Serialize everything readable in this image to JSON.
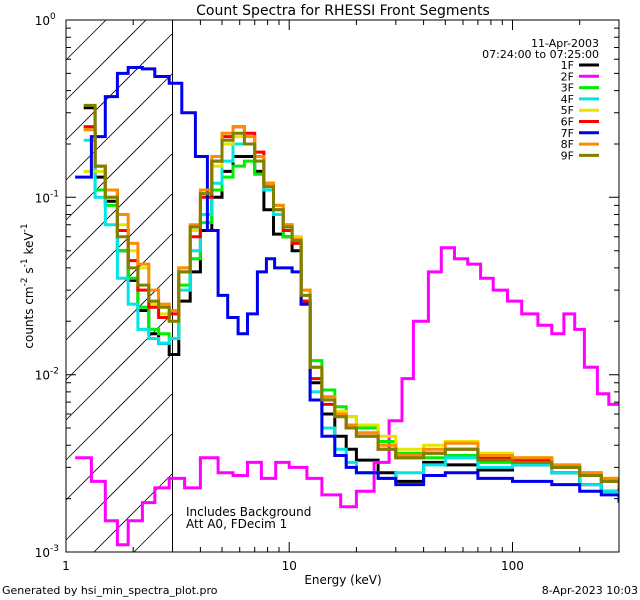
{
  "footer": {
    "left": "Generated by hsi_min_spectra_plot.pro",
    "right": "8-Apr-2023 10:03"
  },
  "chart_data": {
    "type": "line",
    "title": "Count Spectra for RHESSI Front Segments",
    "xlabel": "Energy (keV)",
    "ylabel_parts": [
      "counts cm",
      "-2",
      " s",
      "-1",
      " keV",
      "-1"
    ],
    "x_scale": "log",
    "y_scale": "log",
    "xlim": [
      1,
      300
    ],
    "ylim": [
      0.001,
      1
    ],
    "x_ticks": [
      {
        "v": 1,
        "label": "1"
      },
      {
        "v": 10,
        "label": "10"
      },
      {
        "v": 100,
        "label": "100"
      }
    ],
    "y_ticks": [
      {
        "v": 0.001,
        "base": "10",
        "exp": "-3"
      },
      {
        "v": 0.01,
        "base": "10",
        "exp": "-2"
      },
      {
        "v": 0.1,
        "base": "10",
        "exp": "-1"
      },
      {
        "v": 1,
        "base": "10",
        "exp": "0"
      }
    ],
    "date": "11-Apr-2003",
    "time_range": "07:24:00 to 07:25:00",
    "annotations": [
      "Includes Background",
      "Att A0, FDecim 1"
    ],
    "hatched_region_max_keV": 3,
    "legend_position": "top-right",
    "series": [
      {
        "name": "1F",
        "color": "#000000",
        "x": [
          1.2,
          1.35,
          1.5,
          1.7,
          1.9,
          2.1,
          2.35,
          2.6,
          2.9,
          3.2,
          3.6,
          4,
          4.5,
          5,
          5.6,
          6.3,
          7,
          7.7,
          8.5,
          9.4,
          10.3,
          11.3,
          12.4,
          14,
          16,
          18,
          20,
          25,
          30,
          40,
          50,
          70,
          100,
          150,
          200,
          250,
          300
        ],
        "y": [
          0.32,
          0.13,
          0.095,
          0.05,
          0.034,
          0.023,
          0.017,
          0.015,
          0.013,
          0.026,
          0.038,
          0.065,
          0.1,
          0.14,
          0.17,
          0.17,
          0.14,
          0.085,
          0.062,
          0.06,
          0.05,
          0.025,
          0.009,
          0.006,
          0.0045,
          0.0038,
          0.0033,
          0.0028,
          0.0025,
          0.0032,
          0.0031,
          0.0029,
          0.0031,
          0.0028,
          0.0024,
          0.0022,
          0.002
        ]
      },
      {
        "name": "2F",
        "color": "#ff00ff",
        "x": [
          1.1,
          1.3,
          1.5,
          1.7,
          1.9,
          2.2,
          2.5,
          2.9,
          3.4,
          4,
          4.8,
          5.6,
          6.5,
          7.5,
          8.7,
          10,
          12,
          14,
          17,
          20,
          24,
          28,
          32,
          36,
          42,
          48,
          55,
          63,
          72,
          82,
          95,
          110,
          130,
          150,
          170,
          190,
          210,
          240,
          270,
          300
        ],
        "y": [
          0.0034,
          0.0025,
          0.0015,
          0.0011,
          0.0015,
          0.0019,
          0.0023,
          0.0026,
          0.0023,
          0.0034,
          0.0028,
          0.0027,
          0.0032,
          0.0026,
          0.0032,
          0.003,
          0.0026,
          0.0021,
          0.0018,
          0.0022,
          0.0032,
          0.0055,
          0.0095,
          0.02,
          0.038,
          0.052,
          0.045,
          0.042,
          0.035,
          0.03,
          0.026,
          0.022,
          0.019,
          0.017,
          0.022,
          0.018,
          0.011,
          0.0078,
          0.0068,
          0.007
        ]
      },
      {
        "name": "3F",
        "color": "#00ee00",
        "x": [
          1.2,
          1.35,
          1.5,
          1.7,
          1.9,
          2.1,
          2.35,
          2.6,
          2.9,
          3.2,
          3.6,
          4,
          4.5,
          5,
          5.6,
          6.3,
          7,
          7.7,
          8.5,
          9.4,
          10.3,
          11.3,
          12.4,
          14,
          16,
          18,
          20,
          25,
          30,
          40,
          50,
          70,
          100,
          150,
          200,
          250,
          300
        ],
        "y": [
          0.25,
          0.11,
          0.09,
          0.05,
          0.035,
          0.024,
          0.018,
          0.017,
          0.016,
          0.032,
          0.045,
          0.072,
          0.11,
          0.13,
          0.15,
          0.16,
          0.135,
          0.11,
          0.09,
          0.06,
          0.058,
          0.028,
          0.012,
          0.0082,
          0.0066,
          0.0058,
          0.005,
          0.0042,
          0.0036,
          0.0034,
          0.0035,
          0.0032,
          0.0033,
          0.003,
          0.0028,
          0.0025,
          0.0022
        ]
      },
      {
        "name": "4F",
        "color": "#00e5e5",
        "x": [
          1.2,
          1.35,
          1.5,
          1.7,
          1.9,
          2.1,
          2.35,
          2.6,
          2.9,
          3.2,
          3.6,
          4,
          4.5,
          5,
          5.6,
          6.3,
          7,
          7.7,
          8.5,
          9.4,
          10.3,
          11.3,
          12.4,
          14,
          16,
          18,
          20,
          25,
          30,
          40,
          50,
          70,
          100,
          150,
          200,
          250,
          300
        ],
        "y": [
          0.21,
          0.1,
          0.07,
          0.035,
          0.025,
          0.018,
          0.016,
          0.015,
          0.016,
          0.03,
          0.05,
          0.08,
          0.12,
          0.16,
          0.2,
          0.2,
          0.17,
          0.11,
          0.08,
          0.07,
          0.06,
          0.026,
          0.008,
          0.005,
          0.0038,
          0.0032,
          0.0028,
          0.0026,
          0.0028,
          0.0031,
          0.0034,
          0.003,
          0.0031,
          0.0028,
          0.0024,
          0.0022,
          0.0019
        ]
      },
      {
        "name": "5F",
        "color": "#e5e500",
        "x": [
          1.2,
          1.35,
          1.5,
          1.7,
          1.9,
          2.1,
          2.35,
          2.6,
          2.9,
          3.2,
          3.6,
          4,
          4.5,
          5,
          5.6,
          6.3,
          7,
          7.7,
          8.5,
          9.4,
          10.3,
          11.3,
          12.4,
          14,
          16,
          18,
          20,
          25,
          30,
          40,
          50,
          70,
          100,
          150,
          200,
          250,
          300
        ],
        "y": [
          0.14,
          0.14,
          0.1,
          0.07,
          0.05,
          0.04,
          0.025,
          0.022,
          0.02,
          0.04,
          0.065,
          0.1,
          0.15,
          0.2,
          0.22,
          0.2,
          0.17,
          0.12,
          0.09,
          0.07,
          0.06,
          0.03,
          0.011,
          0.0075,
          0.0062,
          0.0058,
          0.0052,
          0.0045,
          0.0038,
          0.004,
          0.0042,
          0.0036,
          0.0034,
          0.0031,
          0.0028,
          0.0026,
          0.0024
        ]
      },
      {
        "name": "6F",
        "color": "#ff0000",
        "x": [
          1.2,
          1.35,
          1.5,
          1.7,
          1.9,
          2.1,
          2.35,
          2.6,
          2.9,
          3.2,
          3.6,
          4,
          4.5,
          5,
          5.6,
          6.3,
          7,
          7.7,
          8.5,
          9.4,
          10.3,
          11.3,
          12.4,
          14,
          16,
          18,
          20,
          25,
          30,
          40,
          50,
          70,
          100,
          150,
          200,
          250,
          300
        ],
        "y": [
          0.25,
          0.15,
          0.11,
          0.065,
          0.044,
          0.03,
          0.024,
          0.021,
          0.022,
          0.038,
          0.06,
          0.1,
          0.16,
          0.22,
          0.25,
          0.23,
          0.18,
          0.12,
          0.085,
          0.065,
          0.055,
          0.026,
          0.0095,
          0.0068,
          0.0058,
          0.005,
          0.0045,
          0.0038,
          0.0034,
          0.0036,
          0.0038,
          0.0034,
          0.0033,
          0.003,
          0.0027,
          0.0025,
          0.0022
        ]
      },
      {
        "name": "7F",
        "color": "#0000ee",
        "x": [
          1.1,
          1.3,
          1.5,
          1.7,
          1.9,
          2.2,
          2.5,
          2.9,
          3.3,
          3.8,
          4.3,
          4.8,
          5.3,
          5.9,
          6.5,
          7.2,
          7.9,
          8.6,
          9.4,
          10.3,
          11.3,
          12.4,
          14,
          16,
          18,
          20,
          25,
          30,
          40,
          50,
          70,
          100,
          150,
          200,
          250,
          300
        ],
        "y": [
          0.13,
          0.22,
          0.37,
          0.5,
          0.54,
          0.53,
          0.48,
          0.44,
          0.3,
          0.17,
          0.065,
          0.028,
          0.021,
          0.017,
          0.022,
          0.038,
          0.045,
          0.04,
          0.04,
          0.038,
          0.025,
          0.0072,
          0.0045,
          0.0035,
          0.003,
          0.0028,
          0.0026,
          0.0024,
          0.0027,
          0.0028,
          0.0026,
          0.0025,
          0.0024,
          0.0022,
          0.0021,
          0.0019
        ]
      },
      {
        "name": "8F",
        "color": "#ff8c00",
        "x": [
          1.2,
          1.35,
          1.5,
          1.7,
          1.9,
          2.1,
          2.35,
          2.6,
          2.9,
          3.2,
          3.6,
          4,
          4.5,
          5,
          5.6,
          6.3,
          7,
          7.7,
          8.5,
          9.4,
          10.3,
          11.3,
          12.4,
          14,
          16,
          18,
          20,
          25,
          30,
          40,
          50,
          70,
          100,
          150,
          200,
          250,
          300
        ],
        "y": [
          0.24,
          0.15,
          0.11,
          0.08,
          0.055,
          0.042,
          0.03,
          0.025,
          0.023,
          0.04,
          0.07,
          0.11,
          0.17,
          0.23,
          0.25,
          0.22,
          0.17,
          0.12,
          0.09,
          0.07,
          0.058,
          0.03,
          0.011,
          0.0075,
          0.006,
          0.0052,
          0.0047,
          0.004,
          0.0035,
          0.0038,
          0.0041,
          0.0035,
          0.0034,
          0.0031,
          0.0028,
          0.0026,
          0.0024
        ]
      },
      {
        "name": "9F",
        "color": "#808000",
        "x": [
          1.2,
          1.35,
          1.5,
          1.7,
          1.9,
          2.1,
          2.35,
          2.6,
          2.9,
          3.2,
          3.6,
          4,
          4.5,
          5,
          5.6,
          6.3,
          7,
          7.7,
          8.5,
          9.4,
          10.3,
          11.3,
          12.4,
          14,
          16,
          18,
          20,
          25,
          30,
          40,
          50,
          70,
          100,
          150,
          200,
          250,
          300
        ],
        "y": [
          0.33,
          0.15,
          0.1,
          0.06,
          0.04,
          0.032,
          0.026,
          0.024,
          0.02,
          0.038,
          0.068,
          0.105,
          0.16,
          0.21,
          0.23,
          0.2,
          0.16,
          0.115,
          0.085,
          0.068,
          0.057,
          0.028,
          0.011,
          0.0072,
          0.0058,
          0.005,
          0.0045,
          0.0038,
          0.0034,
          0.0036,
          0.0038,
          0.0033,
          0.0032,
          0.003,
          0.0027,
          0.0025,
          0.0023
        ]
      }
    ]
  }
}
